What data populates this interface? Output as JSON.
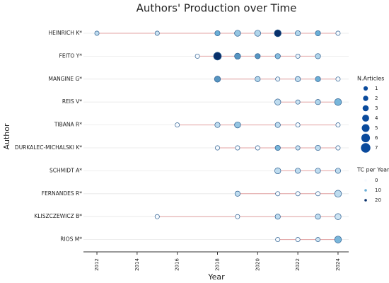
{
  "chart_data": {
    "type": "timeline",
    "title": "Authors' Production over Time",
    "x_label": "Year",
    "y_label": "Author",
    "xlim": [
      2011.33,
      2024.53
    ],
    "xticks": [
      2012,
      2014,
      2016,
      2018,
      2020,
      2022,
      2024
    ],
    "grid": true,
    "line_color": "#e3a3a3",
    "color_scale": [
      "#f7fbff",
      "#6baed6",
      "#08306b"
    ],
    "size_legend_title": "N.Articles",
    "size_legend": [
      1,
      2,
      3,
      4,
      5,
      6,
      7
    ],
    "color_legend_title": "TC per Year",
    "color_legend": [
      0,
      10,
      20
    ],
    "series": [
      {
        "name": "HEINRICH K*",
        "x": [
          2012,
          2015,
          2018,
          2019,
          2020,
          2021,
          2022,
          2023,
          2024
        ],
        "values": [
          1,
          1,
          2,
          3,
          3,
          4,
          2,
          2,
          1
        ],
        "tc": [
          4,
          3,
          10,
          7,
          5,
          20,
          5,
          10,
          0
        ]
      },
      {
        "name": "FEITO Y*",
        "x": [
          2017,
          2018,
          2019,
          2020,
          2021,
          2022,
          2023
        ],
        "values": [
          1,
          5,
          3,
          2,
          2,
          1,
          2
        ],
        "tc": [
          0,
          22,
          12,
          12,
          8,
          1,
          5
        ]
      },
      {
        "name": "MANGINE G*",
        "x": [
          2018,
          2020,
          2021,
          2022,
          2023,
          2024
        ],
        "values": [
          3,
          2,
          1,
          2,
          2,
          1
        ],
        "tc": [
          12,
          5,
          1,
          4,
          10,
          0
        ]
      },
      {
        "name": "REIS V*",
        "x": [
          2021,
          2022,
          2023,
          2024
        ],
        "values": [
          3,
          1,
          2,
          4
        ],
        "tc": [
          4,
          3,
          5,
          9
        ]
      },
      {
        "name": "TIBANA R*",
        "x": [
          2016,
          2018,
          2019,
          2021,
          2022,
          2024
        ],
        "values": [
          1,
          2,
          3,
          2,
          1,
          1
        ],
        "tc": [
          0,
          4,
          7,
          4,
          0,
          0
        ]
      },
      {
        "name": "DURKALEC-MICHALSKI K*",
        "x": [
          2018,
          2019,
          2020,
          2021,
          2022,
          2023,
          2024
        ],
        "values": [
          1,
          1,
          1,
          2,
          1,
          2,
          1
        ],
        "tc": [
          0,
          0,
          0,
          9,
          3,
          4,
          0
        ]
      },
      {
        "name": "SCHMIDT A*",
        "x": [
          2021,
          2022,
          2023,
          2024
        ],
        "values": [
          3,
          2,
          2,
          2
        ],
        "tc": [
          4,
          4,
          4,
          4
        ]
      },
      {
        "name": "FERNANDES R*",
        "x": [
          2019,
          2021,
          2022,
          2023,
          2024
        ],
        "values": [
          2,
          1,
          1,
          1,
          4
        ],
        "tc": [
          4,
          0,
          0,
          0,
          4
        ]
      },
      {
        "name": "KLISZCZEWICZ B*",
        "x": [
          2015,
          2019,
          2021,
          2023,
          2024
        ],
        "values": [
          1,
          1,
          2,
          2,
          3
        ],
        "tc": [
          0,
          0,
          4,
          4,
          3
        ]
      },
      {
        "name": "RIOS M*",
        "x": [
          2021,
          2022,
          2023,
          2024
        ],
        "values": [
          1,
          1,
          1,
          4
        ],
        "tc": [
          0,
          0,
          3,
          9
        ]
      }
    ]
  }
}
